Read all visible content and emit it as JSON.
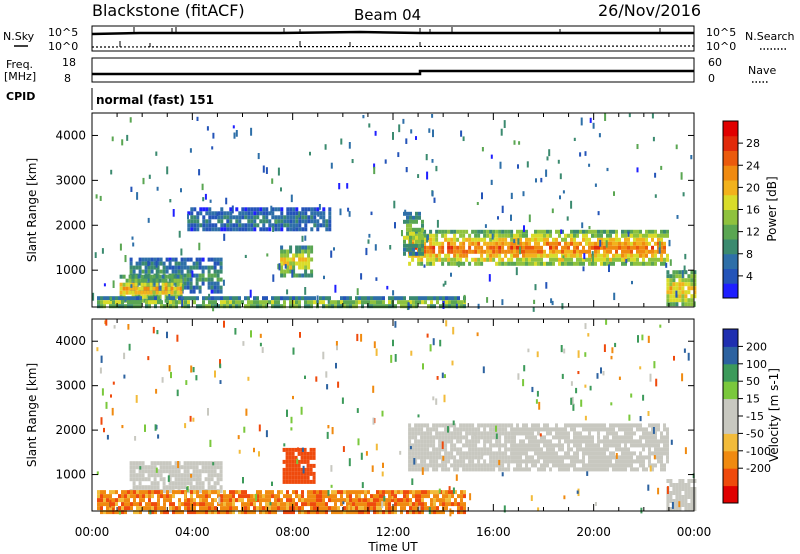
{
  "header": {
    "title": "Blackstone (fitACF)",
    "beam": "Beam 04",
    "date": "26/Nov/2016"
  },
  "status_panels": {
    "nsky_label": "N.Sky",
    "nsearch_label": "N.Search",
    "counts_ticks": [
      "10^5",
      "10^0"
    ],
    "freq_label": "Freq.",
    "freq_unit": "[MHz]",
    "freq_ticks": [
      "18",
      "8"
    ],
    "nave_label": "Nave",
    "nave_ticks": [
      "60",
      "0"
    ],
    "cpid_label": "CPID",
    "cpid_value": "normal (fast) 151"
  },
  "colors": {
    "power_scale": [
      "#1f1fff",
      "#2454b8",
      "#2e6fa8",
      "#3b8a6f",
      "#5aa652",
      "#8fc23e",
      "#d9dc2a",
      "#f2b21c",
      "#f08a10",
      "#eb5a0c",
      "#e12a0a",
      "#e00000"
    ],
    "velocity_scale": [
      "#e00000",
      "#ef4a0c",
      "#f08a10",
      "#f2bb3a",
      "#c8c8c0",
      "#c8c8c0",
      "#7ac83c",
      "#3c9a5a",
      "#2c62a0",
      "#1f2fb0"
    ]
  },
  "chart_data": [
    {
      "type": "heatmap",
      "name": "power-panel",
      "ylabel": "Slant Range [km]",
      "yticks": [
        1000,
        2000,
        3000,
        4000
      ],
      "ylim": [
        180,
        4500
      ],
      "xlim": [
        0,
        24
      ],
      "colorbar": {
        "label": "Power [dB]",
        "ticks": [
          4,
          8,
          12,
          16,
          20,
          24,
          28
        ],
        "range": [
          0,
          32
        ]
      },
      "regions": [
        {
          "t": [
            1.5,
            5.2
          ],
          "r": [
            560,
            1280
          ],
          "level": 9
        },
        {
          "t": [
            1.1,
            3.6
          ],
          "r": [
            320,
            900
          ],
          "level": 18
        },
        {
          "t": [
            0.2,
            14.8
          ],
          "r": [
            190,
            420
          ],
          "level": 14
        },
        {
          "t": [
            7.5,
            8.7
          ],
          "r": [
            900,
            1550
          ],
          "level": 17
        },
        {
          "t": [
            12.6,
            22.9
          ],
          "r": [
            1150,
            1900
          ],
          "level": 22
        },
        {
          "t": [
            12.4,
            13.2
          ],
          "r": [
            1400,
            2300
          ],
          "level": 14
        },
        {
          "t": [
            3.8,
            9.5
          ],
          "r": [
            1900,
            2400
          ],
          "level": 7
        },
        {
          "t": [
            22.9,
            24.0
          ],
          "r": [
            200,
            1000
          ],
          "level": 18
        }
      ]
    },
    {
      "type": "heatmap",
      "name": "velocity-panel",
      "ylabel": "Slant Range [km]",
      "xlabel": "Time UT",
      "yticks": [
        1000,
        2000,
        3000,
        4000
      ],
      "ylim": [
        180,
        4500
      ],
      "xlim": [
        0,
        24
      ],
      "xticks": [
        "00:00",
        "04:00",
        "08:00",
        "12:00",
        "16:00",
        "20:00",
        "00:00"
      ],
      "colorbar": {
        "label": "Velocity [m s-1]",
        "ticks": [
          200,
          100,
          50,
          15,
          -15,
          -50,
          -100,
          -200
        ]
      },
      "regions": [
        {
          "t": [
            1.5,
            5.2
          ],
          "r": [
            600,
            1300
          ],
          "v": 0
        },
        {
          "t": [
            0.2,
            14.8
          ],
          "r": [
            190,
            650
          ],
          "v": -80
        },
        {
          "t": [
            7.6,
            8.8
          ],
          "r": [
            850,
            1600
          ],
          "v": -150
        },
        {
          "t": [
            12.6,
            22.9
          ],
          "r": [
            1150,
            2150
          ],
          "v": 0
        },
        {
          "t": [
            22.9,
            24.0
          ],
          "r": [
            200,
            900
          ],
          "v": 0
        }
      ]
    }
  ]
}
